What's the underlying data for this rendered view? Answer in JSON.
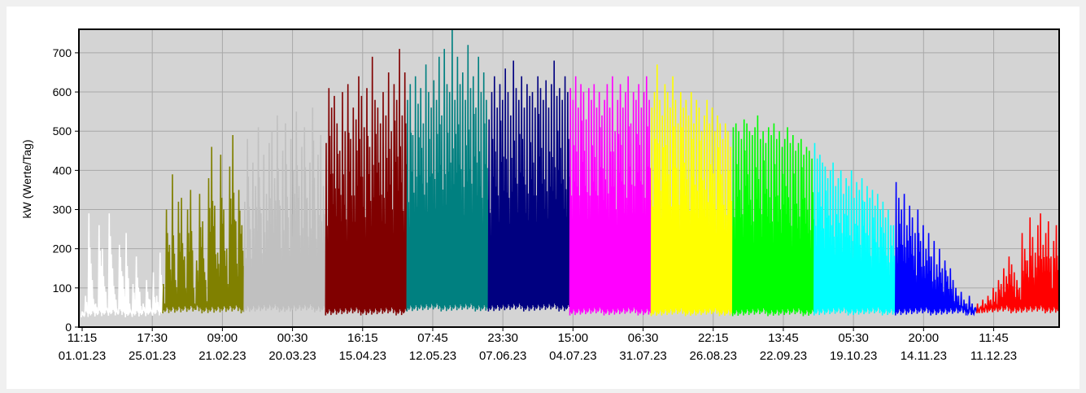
{
  "chart_data": {
    "type": "line",
    "title": "",
    "xlabel": "",
    "ylabel": "kW  (Werte/Tag)",
    "ylim": [
      0,
      760
    ],
    "y_ticks": [
      0,
      100,
      200,
      300,
      400,
      500,
      600,
      700
    ],
    "x_ticks": [
      {
        "time": "11:15",
        "date": "01.01.23"
      },
      {
        "time": "17:30",
        "date": "25.01.23"
      },
      {
        "time": "09:00",
        "date": "21.02.23"
      },
      {
        "time": "00:30",
        "date": "20.03.23"
      },
      {
        "time": "16:15",
        "date": "15.04.23"
      },
      {
        "time": "07:45",
        "date": "12.05.23"
      },
      {
        "time": "23:30",
        "date": "07.06.23"
      },
      {
        "time": "15:00",
        "date": "04.07.23"
      },
      {
        "time": "06:30",
        "date": "31.07.23"
      },
      {
        "time": "22:15",
        "date": "26.08.23"
      },
      {
        "time": "13:45",
        "date": "22.09.23"
      },
      {
        "time": "05:30",
        "date": "19.10.23"
      },
      {
        "time": "20:00",
        "date": "14.11.23"
      },
      {
        "time": "11:45",
        "date": "11.12.23"
      }
    ],
    "grid": true,
    "legend": "none",
    "series": [
      {
        "month": "01",
        "color": "#ffffff",
        "peaks": [
          40,
          80,
          290,
          120,
          60,
          260,
          200,
          90,
          290,
          150,
          70,
          210,
          130,
          240,
          60,
          110,
          180,
          90,
          60,
          120,
          70,
          140,
          80,
          190
        ]
      },
      {
        "month": "02",
        "color": "#808000",
        "peaks": [
          110,
          300,
          210,
          390,
          120,
          320,
          330,
          180,
          300,
          350,
          100,
          170,
          340,
          270,
          120,
          380,
          460,
          310,
          190,
          440,
          300,
          200,
          410,
          490,
          270,
          350,
          260
        ]
      },
      {
        "month": "03",
        "color": "#c0c0c0",
        "peaks": [
          320,
          480,
          250,
          420,
          360,
          510,
          290,
          440,
          340,
          470,
          500,
          380,
          540,
          310,
          450,
          520,
          280,
          480,
          400,
          550,
          360,
          460,
          510,
          330,
          420,
          560,
          300,
          440,
          490,
          360
        ]
      },
      {
        "month": "04",
        "color": "#800000",
        "peaks": [
          470,
          610,
          560,
          590,
          520,
          450,
          600,
          500,
          620,
          480,
          560,
          530,
          640,
          590,
          510,
          610,
          460,
          690,
          580,
          560,
          520,
          600,
          540,
          650,
          500,
          620,
          580,
          710,
          540,
          650
        ]
      },
      {
        "month": "05",
        "color": "#008080",
        "peaks": [
          580,
          620,
          490,
          640,
          570,
          610,
          520,
          670,
          600,
          560,
          630,
          580,
          690,
          540,
          710,
          620,
          600,
          760,
          580,
          690,
          620,
          650,
          580,
          720,
          610,
          640,
          560,
          690,
          600,
          650,
          580
        ]
      },
      {
        "month": "06",
        "color": "#000080",
        "peaks": [
          530,
          600,
          640,
          560,
          620,
          580,
          660,
          600,
          540,
          680,
          610,
          580,
          640,
          560,
          620,
          590,
          600,
          560,
          640,
          610,
          580,
          630,
          560,
          620,
          680,
          590,
          610,
          580,
          640,
          600
        ]
      },
      {
        "month": "07",
        "color": "#ff00ff",
        "peaks": [
          610,
          580,
          640,
          560,
          620,
          600,
          530,
          610,
          580,
          620,
          560,
          600,
          540,
          580,
          620,
          560,
          640,
          500,
          580,
          620,
          560,
          600,
          640,
          520,
          600,
          580,
          620,
          560,
          600,
          640,
          580
        ]
      },
      {
        "month": "08",
        "color": "#ffff00",
        "peaks": [
          560,
          600,
          670,
          580,
          540,
          620,
          600,
          560,
          640,
          580,
          520,
          600,
          560,
          580,
          540,
          600,
          520,
          580,
          560,
          500,
          540,
          580,
          520,
          560,
          500,
          540,
          520,
          480,
          520,
          500,
          460
        ]
      },
      {
        "month": "09",
        "color": "#00ff00",
        "peaks": [
          510,
          520,
          500,
          480,
          530,
          520,
          500,
          490,
          510,
          540,
          480,
          500,
          470,
          510,
          490,
          520,
          480,
          500,
          460,
          480,
          510,
          470,
          490,
          450,
          470,
          480,
          440,
          460,
          450,
          430
        ]
      },
      {
        "month": "10",
        "color": "#00ffff",
        "peaks": [
          470,
          430,
          440,
          420,
          410,
          380,
          400,
          420,
          360,
          380,
          400,
          340,
          380,
          360,
          400,
          330,
          370,
          350,
          380,
          320,
          360,
          330,
          350,
          310,
          340,
          300,
          320,
          280,
          300,
          260,
          260
        ]
      },
      {
        "month": "11",
        "color": "#0000ff",
        "peaks": [
          370,
          330,
          300,
          340,
          260,
          310,
          280,
          240,
          300,
          220,
          260,
          200,
          240,
          180,
          220,
          160,
          200,
          150,
          170,
          130,
          150,
          120,
          100,
          80,
          90,
          70,
          60,
          80,
          60,
          50
        ]
      },
      {
        "month": "12",
        "color": "#ff0000",
        "peaks": [
          60,
          50,
          70,
          60,
          80,
          70,
          100,
          90,
          120,
          110,
          150,
          130,
          180,
          160,
          140,
          120,
          100,
          240,
          200,
          170,
          280,
          230,
          190,
          260,
          290,
          210,
          240,
          270,
          180,
          220,
          260
        ]
      }
    ]
  }
}
